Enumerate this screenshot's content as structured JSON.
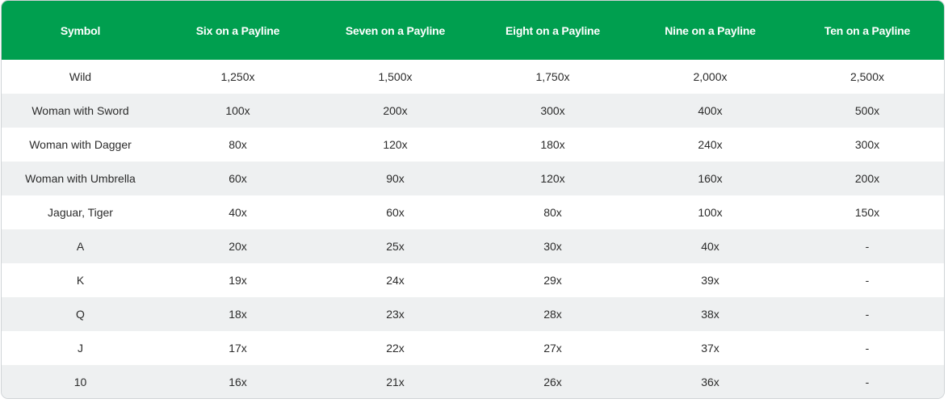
{
  "table": {
    "headers": [
      "Symbol",
      "Six on a Payline",
      "Seven on a Payline",
      "Eight on a Payline",
      "Nine on a Payline",
      "Ten on a Payline"
    ],
    "rows": [
      [
        "Wild",
        "1,250x",
        "1,500x",
        "1,750x",
        "2,000x",
        "2,500x"
      ],
      [
        "Woman with Sword",
        "100x",
        "200x",
        "300x",
        "400x",
        "500x"
      ],
      [
        "Woman with Dagger",
        "80x",
        "120x",
        "180x",
        "240x",
        "300x"
      ],
      [
        "Woman with Umbrella",
        "60x",
        "90x",
        "120x",
        "160x",
        "200x"
      ],
      [
        "Jaguar, Tiger",
        "40x",
        "60x",
        "80x",
        "100x",
        "150x"
      ],
      [
        "A",
        "20x",
        "25x",
        "30x",
        "40x",
        "-"
      ],
      [
        "K",
        "19x",
        "24x",
        "29x",
        "39x",
        "-"
      ],
      [
        "Q",
        "18x",
        "23x",
        "28x",
        "38x",
        "-"
      ],
      [
        "J",
        "17x",
        "22x",
        "27x",
        "37x",
        "-"
      ],
      [
        "10",
        "16x",
        "21x",
        "26x",
        "36x",
        "-"
      ]
    ]
  },
  "colors": {
    "header_bg": "#009f4f",
    "header_text": "#ffffff",
    "row_alt_bg": "#eef0f1",
    "cell_text": "#2b2b2b"
  }
}
